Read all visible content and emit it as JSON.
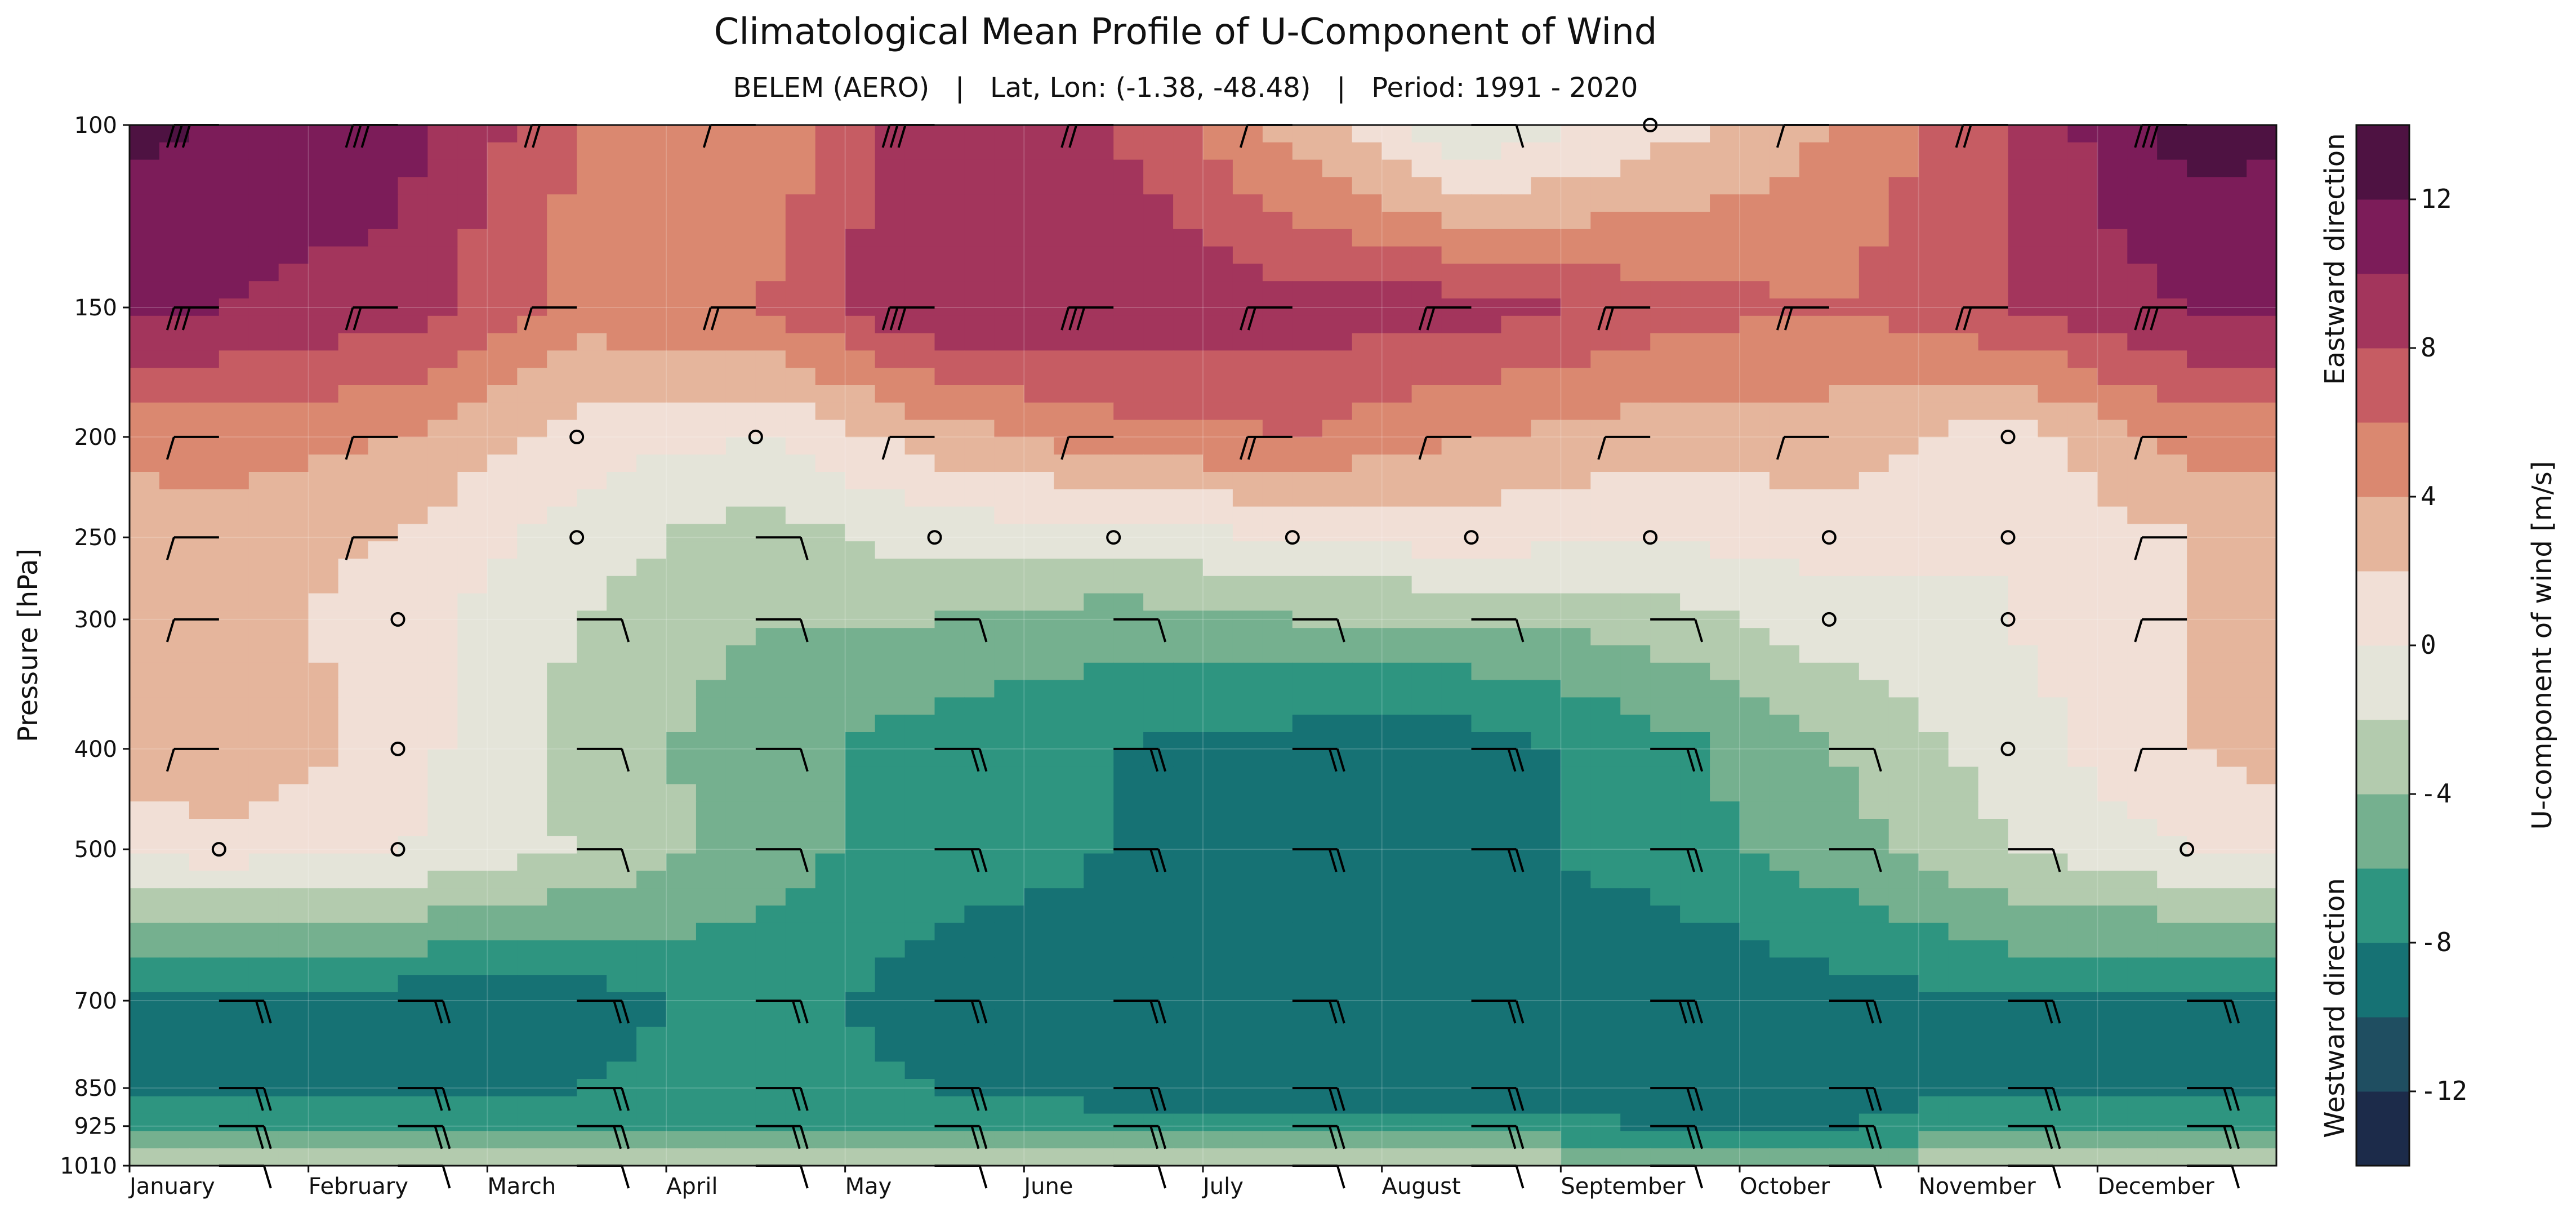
{
  "title": "Climatological Mean Profile of U-Component of Wind",
  "subtitle": "BELEM (AERO)   |   Lat, Lon: (-1.38, -48.48)   |   Period: 1991 - 2020",
  "chart_data": {
    "type": "heatmap",
    "title": "Climatological Mean Profile of U-Component of Wind",
    "subtitle": "BELEM (AERO)   |   Lat, Lon: (-1.38, -48.48)   |   Period: 1991 - 2020",
    "xlabel": "",
    "ylabel": "Pressure [hPa]",
    "x_categories": [
      "January",
      "February",
      "March",
      "April",
      "May",
      "June",
      "July",
      "August",
      "September",
      "October",
      "November",
      "December"
    ],
    "y_ticks": [
      100,
      150,
      200,
      250,
      300,
      400,
      500,
      700,
      850,
      925,
      1010
    ],
    "y_scale": "log",
    "y_inverted": true,
    "ylim": [
      1010,
      100
    ],
    "colorbar": {
      "label": "U-component of wind [m/s]",
      "ticks": [
        12,
        8,
        4,
        0,
        -4,
        -8,
        -12
      ],
      "range": [
        -14,
        14
      ],
      "top_annotation": "Eastward direction",
      "bottom_annotation": "Westward direction",
      "levels": [
        {
          "from": -14,
          "to": -12,
          "color": "#1c2b4a"
        },
        {
          "from": -12,
          "to": -10,
          "color": "#1f4e61"
        },
        {
          "from": -10,
          "to": -8,
          "color": "#167274"
        },
        {
          "from": -8,
          "to": -6,
          "color": "#2e9580"
        },
        {
          "from": -6,
          "to": -4,
          "color": "#75b08f"
        },
        {
          "from": -4,
          "to": -2,
          "color": "#b3cbae"
        },
        {
          "from": -2,
          "to": 0,
          "color": "#e4e4d9"
        },
        {
          "from": 0,
          "to": 2,
          "color": "#f1dfd6"
        },
        {
          "from": 2,
          "to": 4,
          "color": "#e5b59c"
        },
        {
          "from": 4,
          "to": 6,
          "color": "#da8870"
        },
        {
          "from": 6,
          "to": 8,
          "color": "#c65c63"
        },
        {
          "from": 8,
          "to": 10,
          "color": "#a3355c"
        },
        {
          "from": 10,
          "to": 12,
          "color": "#7c1c59"
        },
        {
          "from": 12,
          "to": 14,
          "color": "#4e1242"
        }
      ]
    },
    "series": [
      {
        "name": "100",
        "values": [
          12,
          11,
          6,
          4,
          10,
          8,
          3,
          -2,
          1,
          4,
          8,
          13
        ]
      },
      {
        "name": "150",
        "values": [
          10,
          9,
          5,
          6,
          10,
          10,
          9,
          9,
          7,
          6,
          8,
          10
        ]
      },
      {
        "name": "200",
        "values": [
          5,
          4,
          1,
          0,
          3,
          5,
          6,
          4,
          3,
          3,
          1,
          5
        ]
      },
      {
        "name": "250",
        "values": [
          3,
          2,
          -1,
          -3,
          -1,
          -1,
          0,
          1,
          0,
          1,
          0,
          2
        ]
      },
      {
        "name": "300",
        "values": [
          3,
          1,
          -2,
          -4,
          -4,
          -5,
          -4,
          -4,
          -3,
          -1,
          0,
          2
        ]
      },
      {
        "name": "400",
        "values": [
          4,
          1,
          -3,
          -5,
          -7,
          -8,
          -9,
          -9,
          -7,
          -4,
          -1,
          2
        ]
      },
      {
        "name": "500",
        "values": [
          1,
          0,
          -2,
          -5,
          -7,
          -8,
          -9,
          -9,
          -7,
          -5,
          -2,
          0
        ]
      },
      {
        "name": "700",
        "values": [
          -9,
          -9,
          -9,
          -7,
          -9,
          -9,
          -9,
          -9,
          -10,
          -9,
          -8,
          -9
        ]
      },
      {
        "name": "850",
        "values": [
          -8,
          -8,
          -8,
          -7,
          -8,
          -9,
          -9,
          -9,
          -9,
          -9,
          -8,
          -8
        ]
      },
      {
        "name": "925",
        "values": [
          -6,
          -6,
          -6,
          -6,
          -6,
          -7,
          -7,
          -7,
          -8,
          -8,
          -7,
          -7
        ]
      },
      {
        "name": "1010",
        "values": [
          -3,
          -3,
          -3,
          -3,
          -3,
          -3,
          -3,
          -3,
          -3,
          -3,
          -3,
          -3
        ]
      }
    ]
  }
}
